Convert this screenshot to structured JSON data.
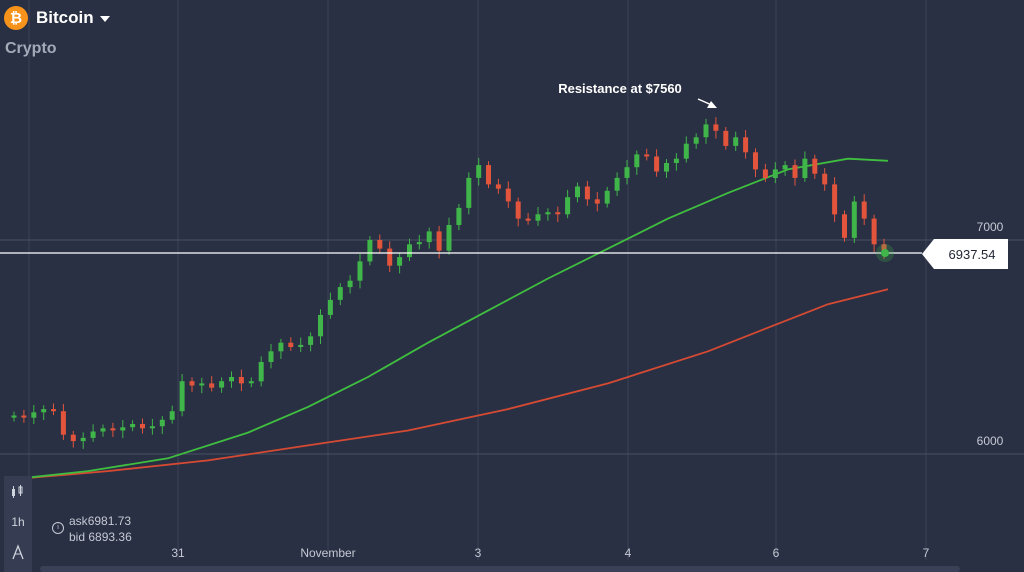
{
  "header": {
    "coin_symbol": "₿",
    "asset_name": "Bitcoin",
    "category": "Crypto"
  },
  "toolbar": {
    "timeframe": "1h",
    "chart_type_icon": "candles-icon",
    "draw_icon": "draw-tool-icon"
  },
  "quote": {
    "ask_label": "ask",
    "ask_value": "6981.73",
    "bid_label": "bid",
    "bid_value": "6893.36"
  },
  "current_price": "6937.54",
  "annotation": "Resistance at $7560",
  "colors": {
    "background": "#2a3043",
    "bull": "#3fb54a",
    "bear": "#e2543c",
    "ma_fast": "#3fbf3f",
    "ma_slow": "#d64a33",
    "coin": "#f7931a"
  },
  "chart_data": {
    "type": "candlestick",
    "x_ticks": [
      "31",
      "November",
      "3",
      "4",
      "6",
      "7"
    ],
    "y_ticks": [
      "7000",
      "6000"
    ],
    "ylim": [
      5900,
      7700
    ],
    "current_price": 6937.54,
    "annotation": {
      "text": "Resistance at $7560",
      "value": 7560
    },
    "close_series": [
      6180,
      6170,
      6195,
      6210,
      6200,
      6090,
      6060,
      6075,
      6105,
      6120,
      6110,
      6125,
      6140,
      6120,
      6130,
      6160,
      6200,
      6340,
      6320,
      6330,
      6310,
      6340,
      6360,
      6330,
      6340,
      6430,
      6480,
      6520,
      6500,
      6510,
      6550,
      6650,
      6720,
      6780,
      6810,
      6900,
      7000,
      6960,
      6880,
      6920,
      6980,
      6990,
      7040,
      6950,
      7070,
      7150,
      7290,
      7350,
      7260,
      7240,
      7180,
      7100,
      7090,
      7120,
      7130,
      7120,
      7200,
      7250,
      7190,
      7170,
      7230,
      7290,
      7340,
      7400,
      7390,
      7320,
      7360,
      7380,
      7450,
      7480,
      7540,
      7510,
      7440,
      7480,
      7410,
      7330,
      7290,
      7330,
      7350,
      7290,
      7380,
      7310,
      7260,
      7120,
      7010,
      7180,
      7100,
      6980,
      6930
    ],
    "series": [
      {
        "name": "",
        "type": "moving-average",
        "points": [
          [
            0,
            5880
          ],
          [
            80,
            5920
          ],
          [
            160,
            5980
          ],
          [
            240,
            6100
          ],
          [
            300,
            6220
          ],
          [
            360,
            6360
          ],
          [
            420,
            6520
          ],
          [
            480,
            6670
          ],
          [
            540,
            6820
          ],
          [
            600,
            6960
          ],
          [
            660,
            7100
          ],
          [
            720,
            7220
          ],
          [
            780,
            7330
          ],
          [
            840,
            7380
          ],
          [
            880,
            7370
          ]
        ]
      },
      {
        "name": "",
        "type": "moving-average",
        "points": [
          [
            0,
            5880
          ],
          [
            100,
            5920
          ],
          [
            200,
            5970
          ],
          [
            300,
            6040
          ],
          [
            400,
            6110
          ],
          [
            500,
            6210
          ],
          [
            600,
            6330
          ],
          [
            700,
            6480
          ],
          [
            760,
            6590
          ],
          [
            820,
            6700
          ],
          [
            880,
            6770
          ]
        ]
      }
    ]
  }
}
